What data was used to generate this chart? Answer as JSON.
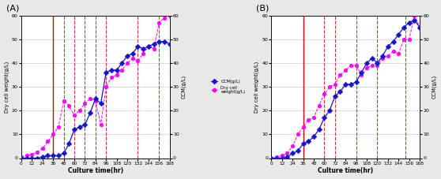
{
  "panel_A": {
    "label": "(A)",
    "dcw_time": [
      0,
      6,
      12,
      18,
      24,
      30,
      36,
      42,
      48,
      54,
      60,
      66,
      72,
      78,
      84,
      90,
      96,
      102,
      108,
      114,
      120,
      126,
      132,
      138,
      144,
      150,
      156,
      162,
      168
    ],
    "dcw_values": [
      0.5,
      1.0,
      1.5,
      2.5,
      4,
      7,
      10,
      13,
      24,
      22,
      18,
      20,
      23,
      25,
      24,
      14,
      30,
      34,
      35,
      37,
      40,
      42,
      41,
      44,
      47,
      46,
      57,
      59,
      60
    ],
    "ccm_time": [
      0,
      6,
      12,
      18,
      24,
      30,
      36,
      42,
      48,
      54,
      60,
      66,
      72,
      78,
      84,
      90,
      96,
      102,
      108,
      114,
      120,
      126,
      132,
      138,
      144,
      150,
      156,
      162,
      168
    ],
    "ccm_values": [
      0,
      0,
      0,
      0,
      0.5,
      1,
      1,
      1,
      2,
      6,
      12,
      13,
      14,
      19,
      25,
      23,
      36,
      37,
      37,
      40,
      43,
      44,
      47,
      46,
      47,
      48,
      49,
      49,
      48
    ],
    "vlines_solid": [
      36
    ],
    "vlines_dashed": [
      48,
      60,
      72,
      84,
      96,
      132,
      156,
      168
    ],
    "xlim": [
      0,
      168
    ],
    "ylim_left": [
      0,
      60
    ],
    "ylim_right": [
      0,
      60
    ],
    "xticks": [
      0,
      12,
      24,
      36,
      48,
      60,
      72,
      84,
      96,
      108,
      120,
      132,
      144,
      156,
      168
    ],
    "yticks_left": [
      0,
      10,
      20,
      30,
      40,
      50,
      60
    ],
    "yticks_right": [
      0,
      10,
      20,
      30,
      40,
      50,
      60
    ],
    "ylabel_left": "Dry cell weight(g/L)",
    "ylabel_right": "CCM(g/L)",
    "xlabel": "Culture time(hr)"
  },
  "panel_B": {
    "label": "(B)",
    "dcw_time": [
      0,
      6,
      12,
      18,
      24,
      30,
      36,
      42,
      48,
      54,
      60,
      66,
      72,
      78,
      84,
      90,
      96,
      102,
      108,
      114,
      120,
      126,
      132,
      138,
      144,
      150,
      156,
      162,
      168
    ],
    "dcw_values": [
      0,
      0.5,
      1,
      2,
      5,
      10,
      13,
      16,
      17,
      22,
      27,
      30,
      31,
      35,
      37,
      39,
      39,
      35,
      38,
      39,
      39,
      42,
      43,
      45,
      44,
      50,
      50,
      60,
      55
    ],
    "ccm_time": [
      0,
      6,
      12,
      18,
      24,
      30,
      36,
      42,
      48,
      54,
      60,
      66,
      72,
      78,
      84,
      90,
      96,
      102,
      108,
      114,
      120,
      126,
      132,
      138,
      144,
      150,
      156,
      162,
      168
    ],
    "ccm_values": [
      0,
      0,
      0,
      0.5,
      2,
      3,
      6,
      7,
      9,
      12,
      17,
      20,
      26,
      28,
      31,
      31,
      32,
      36,
      40,
      42,
      40,
      43,
      47,
      49,
      52,
      55,
      57,
      58,
      55
    ],
    "vlines_solid": [
      36
    ],
    "vlines_dashed": [
      60,
      72,
      96,
      120,
      152
    ],
    "xlim": [
      0,
      168
    ],
    "ylim_left": [
      0,
      60
    ],
    "ylim_right": [
      0,
      60
    ],
    "xticks": [
      0,
      12,
      24,
      36,
      48,
      60,
      72,
      84,
      96,
      108,
      120,
      132,
      144,
      156,
      168
    ],
    "yticks_left": [
      0,
      10,
      20,
      30,
      40,
      50,
      60
    ],
    "yticks_right": [
      0,
      10,
      20,
      30,
      40,
      50,
      60
    ],
    "ylabel_left": "Dry cell weight(g/L)",
    "ylabel_right": "CCM(g/L)",
    "xlabel": "Culture time(hr)"
  },
  "dcw_color": "#FF00FF",
  "ccm_color": "#1414CC",
  "bg_color": "#e8e8e8",
  "plot_bg": "#ffffff",
  "grid_color": "#cccccc",
  "vline_solid_color": "#cc0000",
  "vline_dashed_color": "#cc3333"
}
